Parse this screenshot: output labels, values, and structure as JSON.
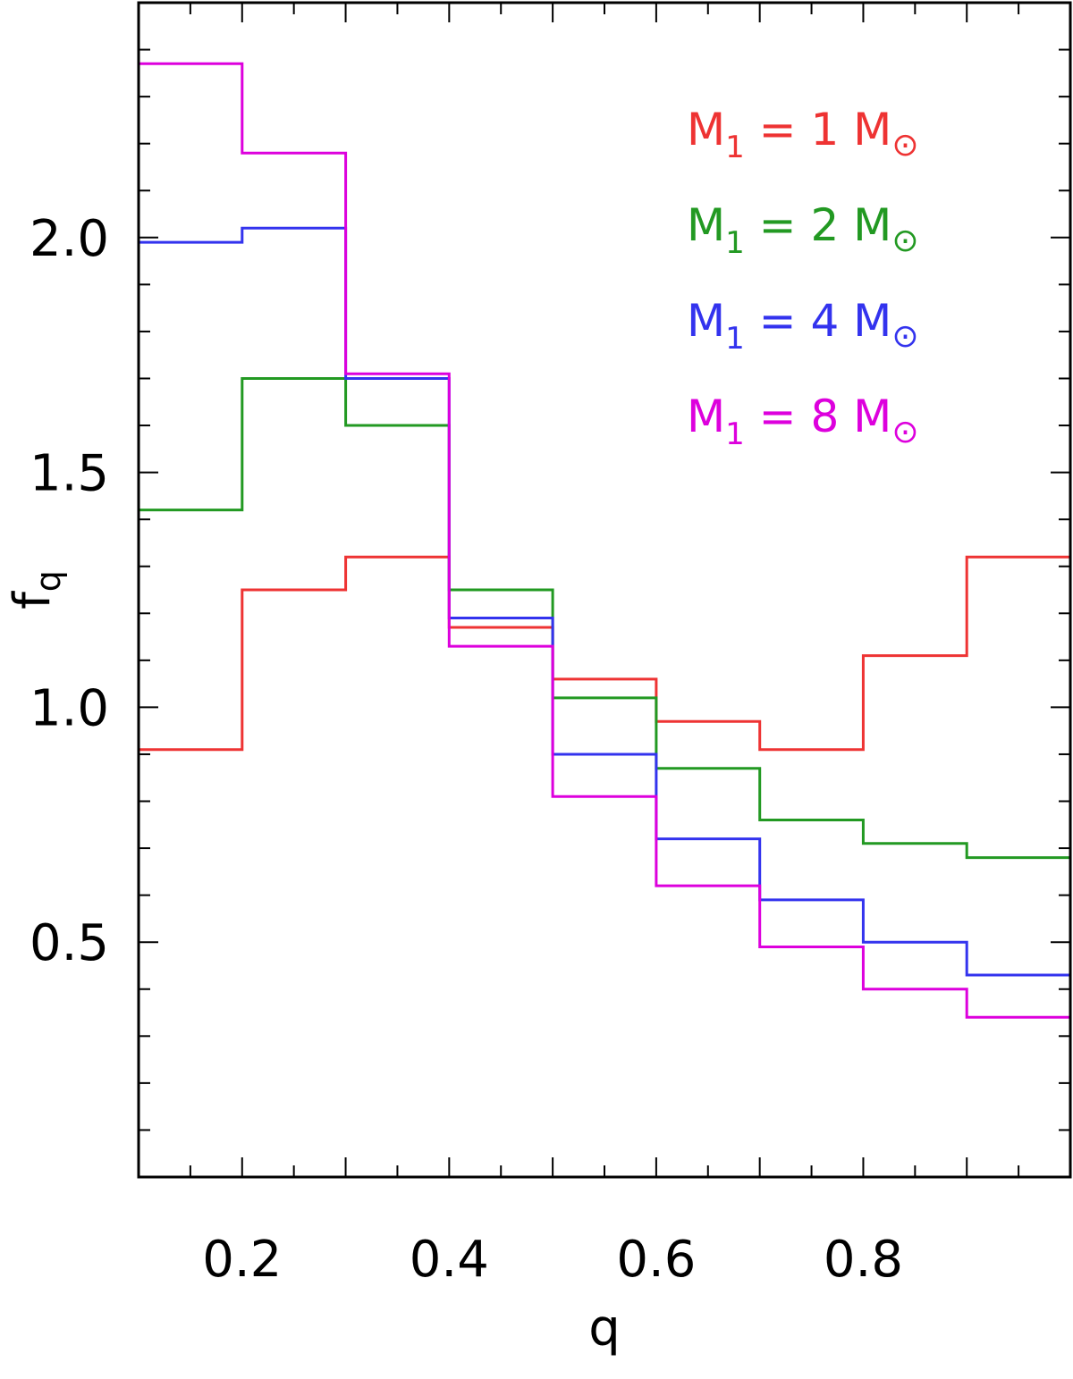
{
  "chart_data": {
    "type": "line",
    "step": true,
    "xlabel": "q",
    "ylabel": "f_q",
    "ylabel_main": "f",
    "ylabel_sub": "q",
    "xlim": [
      0.1,
      1.0
    ],
    "ylim": [
      0.0,
      2.5
    ],
    "xticks": [
      0.2,
      0.4,
      0.6,
      0.8
    ],
    "xtick_labels": [
      "0.2",
      "0.4",
      "0.6",
      "0.8"
    ],
    "yticks": [
      0.5,
      1.0,
      1.5,
      2.0
    ],
    "ytick_labels": [
      "0.5",
      "1.0",
      "1.5",
      "2.0"
    ],
    "bin_edges": [
      0.1,
      0.2,
      0.3,
      0.4,
      0.5,
      0.6,
      0.7,
      0.8,
      0.9,
      1.0
    ],
    "grid": false,
    "legend_position": "top-right",
    "series": [
      {
        "name": "M_1 = 1 M_sun",
        "legend_pre": "M",
        "legend_sub": "1",
        "legend_mid": " = 1 M",
        "legend_symbol": "⊙",
        "color": "#ee3333",
        "values": [
          0.91,
          1.25,
          1.32,
          1.17,
          1.06,
          0.97,
          0.91,
          1.11,
          1.32
        ]
      },
      {
        "name": "M_1 = 2 M_sun",
        "legend_pre": "M",
        "legend_sub": "1",
        "legend_mid": " = 2 M",
        "legend_symbol": "⊙",
        "color": "#229922",
        "values": [
          1.42,
          1.7,
          1.6,
          1.25,
          1.02,
          0.87,
          0.76,
          0.71,
          0.68
        ]
      },
      {
        "name": "M_1 = 4 M_sun",
        "legend_pre": "M",
        "legend_sub": "1",
        "legend_mid": " = 4 M",
        "legend_symbol": "⊙",
        "color": "#3333ee",
        "values": [
          1.99,
          2.02,
          1.7,
          1.19,
          0.9,
          0.72,
          0.59,
          0.5,
          0.43
        ]
      },
      {
        "name": "M_1 = 8 M_sun",
        "legend_pre": "M",
        "legend_sub": "1",
        "legend_mid": " = 8 M",
        "legend_symbol": "⊙",
        "color": "#dd00dd",
        "values": [
          2.37,
          2.18,
          1.71,
          1.13,
          0.81,
          0.62,
          0.49,
          0.4,
          0.34
        ]
      }
    ]
  }
}
